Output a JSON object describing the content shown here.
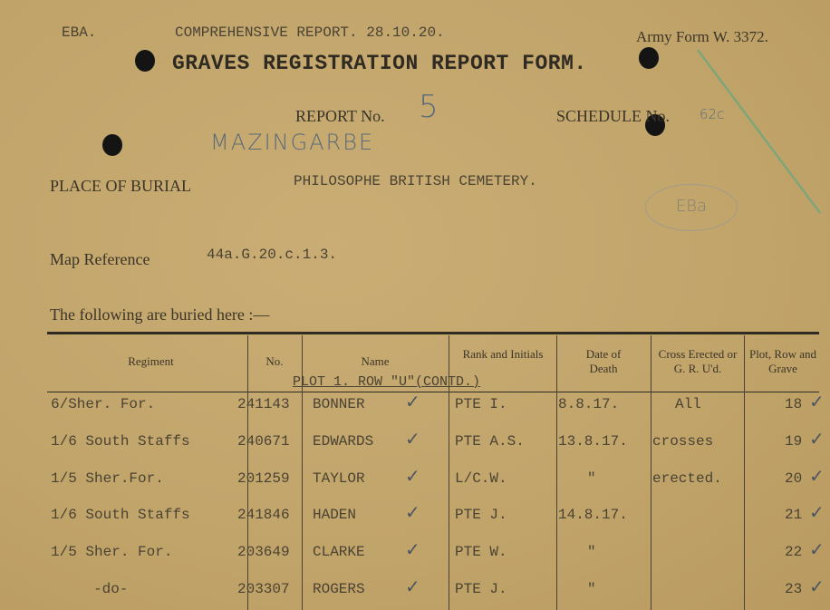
{
  "header": {
    "code": "EBA.",
    "comprehensive": "COMPREHENSIVE REPORT. 28.10.20.",
    "army_form": "Army Form W. 3372.",
    "title": "GRAVES REGISTRATION REPORT FORM.",
    "report_label": "REPORT No.",
    "report_no": "5",
    "schedule_label": "SCHEDULE No.",
    "schedule_no": "62c",
    "handwritten_place": "MAZINGARBE",
    "place_label": "PLACE OF BURIAL",
    "place_value": "PHILOSOPHE BRITISH CEMETERY.",
    "stamp": "EBa",
    "map_label": "Map Reference",
    "map_value": "44a.G.20.c.1.3.",
    "buried_here": "The following are buried here :—"
  },
  "table": {
    "columns": [
      "Regiment",
      "No.",
      "Name",
      "Rank and Initials",
      "Date of Death",
      "Cross Erected or G. R. U'd.",
      "Plot, Row and Grave"
    ],
    "subheading": "PLOT 1. ROW \"U\"(CONTD.)",
    "rows": [
      {
        "regiment": "6/Sher. For.",
        "no": "241143",
        "name": "BONNER",
        "rank": "PTE I.",
        "date": "8.8.17.",
        "cross": "All",
        "grave": "18"
      },
      {
        "regiment": "1/6 South Staffs",
        "no": "240671",
        "name": "EDWARDS",
        "rank": "PTE A.S.",
        "date": "13.8.17.",
        "cross": "crosses",
        "grave": "19"
      },
      {
        "regiment": "1/5 Sher.For.",
        "no": "201259",
        "name": "TAYLOR",
        "rank": "L/C.W.",
        "date": "\"",
        "cross": "erected.",
        "grave": "20"
      },
      {
        "regiment": "1/6 South Staffs",
        "no": "241846",
        "name": "HADEN",
        "rank": "PTE J.",
        "date": "14.8.17.",
        "cross": "",
        "grave": "21"
      },
      {
        "regiment": "1/5 Sher. For.",
        "no": "203649",
        "name": "CLARKE",
        "rank": "PTE W.",
        "date": "\"",
        "cross": "",
        "grave": "22"
      },
      {
        "regiment": "-do-",
        "no": "203307",
        "name": "ROGERS",
        "rank": "PTE J.",
        "date": "\"",
        "cross": "",
        "grave": "23"
      }
    ]
  }
}
